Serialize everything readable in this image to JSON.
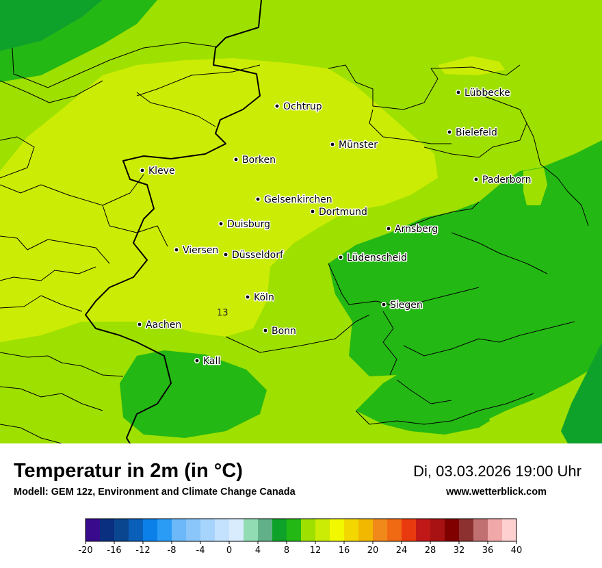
{
  "map": {
    "value_label": "13",
    "zone_colors": {
      "band_12_14": "#cbec04",
      "band_10_12": "#9ee000",
      "band_8_10": "#24b814",
      "band_6_8": "#0fa22a"
    },
    "border_color": "#000000",
    "cities": [
      {
        "name": "Ochtrup"
      },
      {
        "name": "Lübbecke"
      },
      {
        "name": "Bielefeld"
      },
      {
        "name": "Münster"
      },
      {
        "name": "Borken"
      },
      {
        "name": "Kleve"
      },
      {
        "name": "Paderborn"
      },
      {
        "name": "Gelsenkirchen"
      },
      {
        "name": "Dortmund"
      },
      {
        "name": "Duisburg"
      },
      {
        "name": "Arnsberg"
      },
      {
        "name": "Viersen"
      },
      {
        "name": "Düsseldorf"
      },
      {
        "name": "Lüdenscheid"
      },
      {
        "name": "Köln"
      },
      {
        "name": "Siegen"
      },
      {
        "name": "Aachen"
      },
      {
        "name": "Bonn"
      },
      {
        "name": "Kall"
      }
    ]
  },
  "header": {
    "title": "Temperatur in 2m (in °C)",
    "model": "Modell: GEM 12z, Environment and Climate Change Canada",
    "datetime": "Di, 03.03.2026 19:00 Uhr",
    "website": "www.wetterblick.com"
  },
  "legend": {
    "ticks": [
      "-20",
      "-16",
      "-12",
      "-8",
      "-4",
      "0",
      "4",
      "8",
      "12",
      "16",
      "20",
      "24",
      "28",
      "32",
      "36",
      "40"
    ],
    "colors": [
      "#3a0a8c",
      "#0a2f80",
      "#0a4590",
      "#0a5fb8",
      "#0a80e8",
      "#2a9cf5",
      "#6cb8f8",
      "#8ac6fa",
      "#a6d4fc",
      "#c4e2fd",
      "#d8ecfe",
      "#92dcb4",
      "#62b08a",
      "#0fa22a",
      "#24b814",
      "#9ee000",
      "#cbec04",
      "#f2f800",
      "#f2d800",
      "#f2b800",
      "#f0881a",
      "#f06a14",
      "#e83a0e",
      "#c01818",
      "#a81212",
      "#800000",
      "#8c3030",
      "#c07070",
      "#f0a8a8",
      "#ffd0d0"
    ]
  }
}
